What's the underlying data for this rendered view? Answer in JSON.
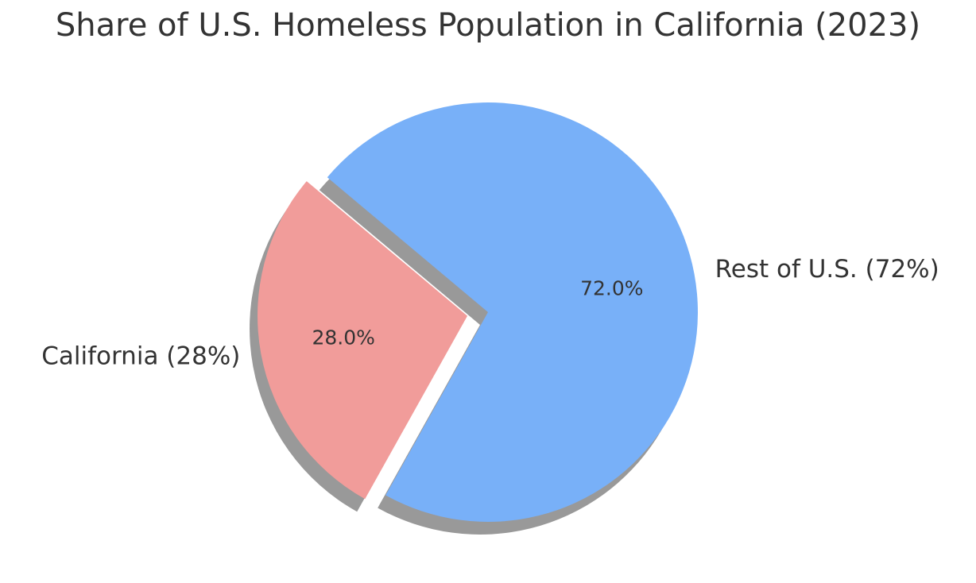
{
  "chart_data": {
    "type": "pie",
    "title": "Share of U.S. Homeless Population in California (2023)",
    "slices": [
      {
        "label": "California (28%)",
        "value": 28,
        "pct_label": "28.0%",
        "color": "#f19c9a",
        "exploded": true
      },
      {
        "label": "Rest of U.S. (72%)",
        "value": 72,
        "pct_label": "72.0%",
        "color": "#78b0f8",
        "exploded": false
      }
    ],
    "shadow": true,
    "legend": "none"
  }
}
